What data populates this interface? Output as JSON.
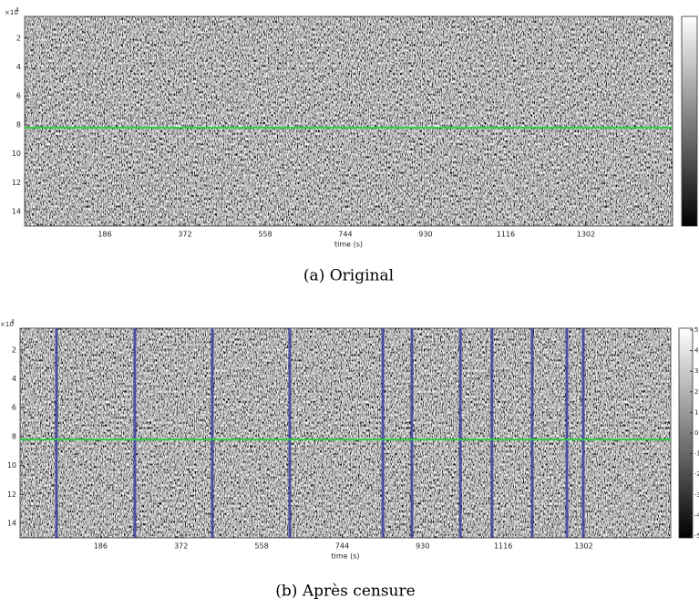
{
  "chart_data": [
    {
      "type": "image",
      "caption": "(a) Original",
      "xlabel": "time (s)",
      "y_exponent_base": "×10",
      "y_exponent": "4",
      "xlim": [
        0,
        1503
      ],
      "xticks": [
        186,
        372,
        558,
        744,
        930,
        1116,
        1302
      ],
      "ylim": [
        0.5,
        15
      ],
      "yticks": [
        2,
        4,
        6,
        8,
        10,
        12,
        14
      ],
      "marker_y": 8.2,
      "marker_color": "#2ecc40"
    },
    {
      "type": "image",
      "caption": "(b) Après censure",
      "xlabel": "time (s)",
      "y_exponent_base": "×10",
      "y_exponent": "4",
      "xlim": [
        0,
        1503
      ],
      "xticks": [
        186,
        372,
        558,
        744,
        930,
        1116,
        1302
      ],
      "ylim": [
        0.5,
        15
      ],
      "yticks": [
        2,
        4,
        6,
        8,
        10,
        12,
        14
      ],
      "marker_y": 8.2,
      "marker_color": "#2ecc40",
      "censored_times": [
        84,
        265,
        444,
        623,
        838,
        905,
        1017,
        1090,
        1183,
        1263,
        1301
      ],
      "censored_color": "#3a3f9e",
      "clim": [
        -5,
        5
      ],
      "cticks": [
        5,
        4,
        3,
        2,
        1,
        0,
        -1,
        -2,
        -3,
        -4,
        -5
      ]
    }
  ]
}
